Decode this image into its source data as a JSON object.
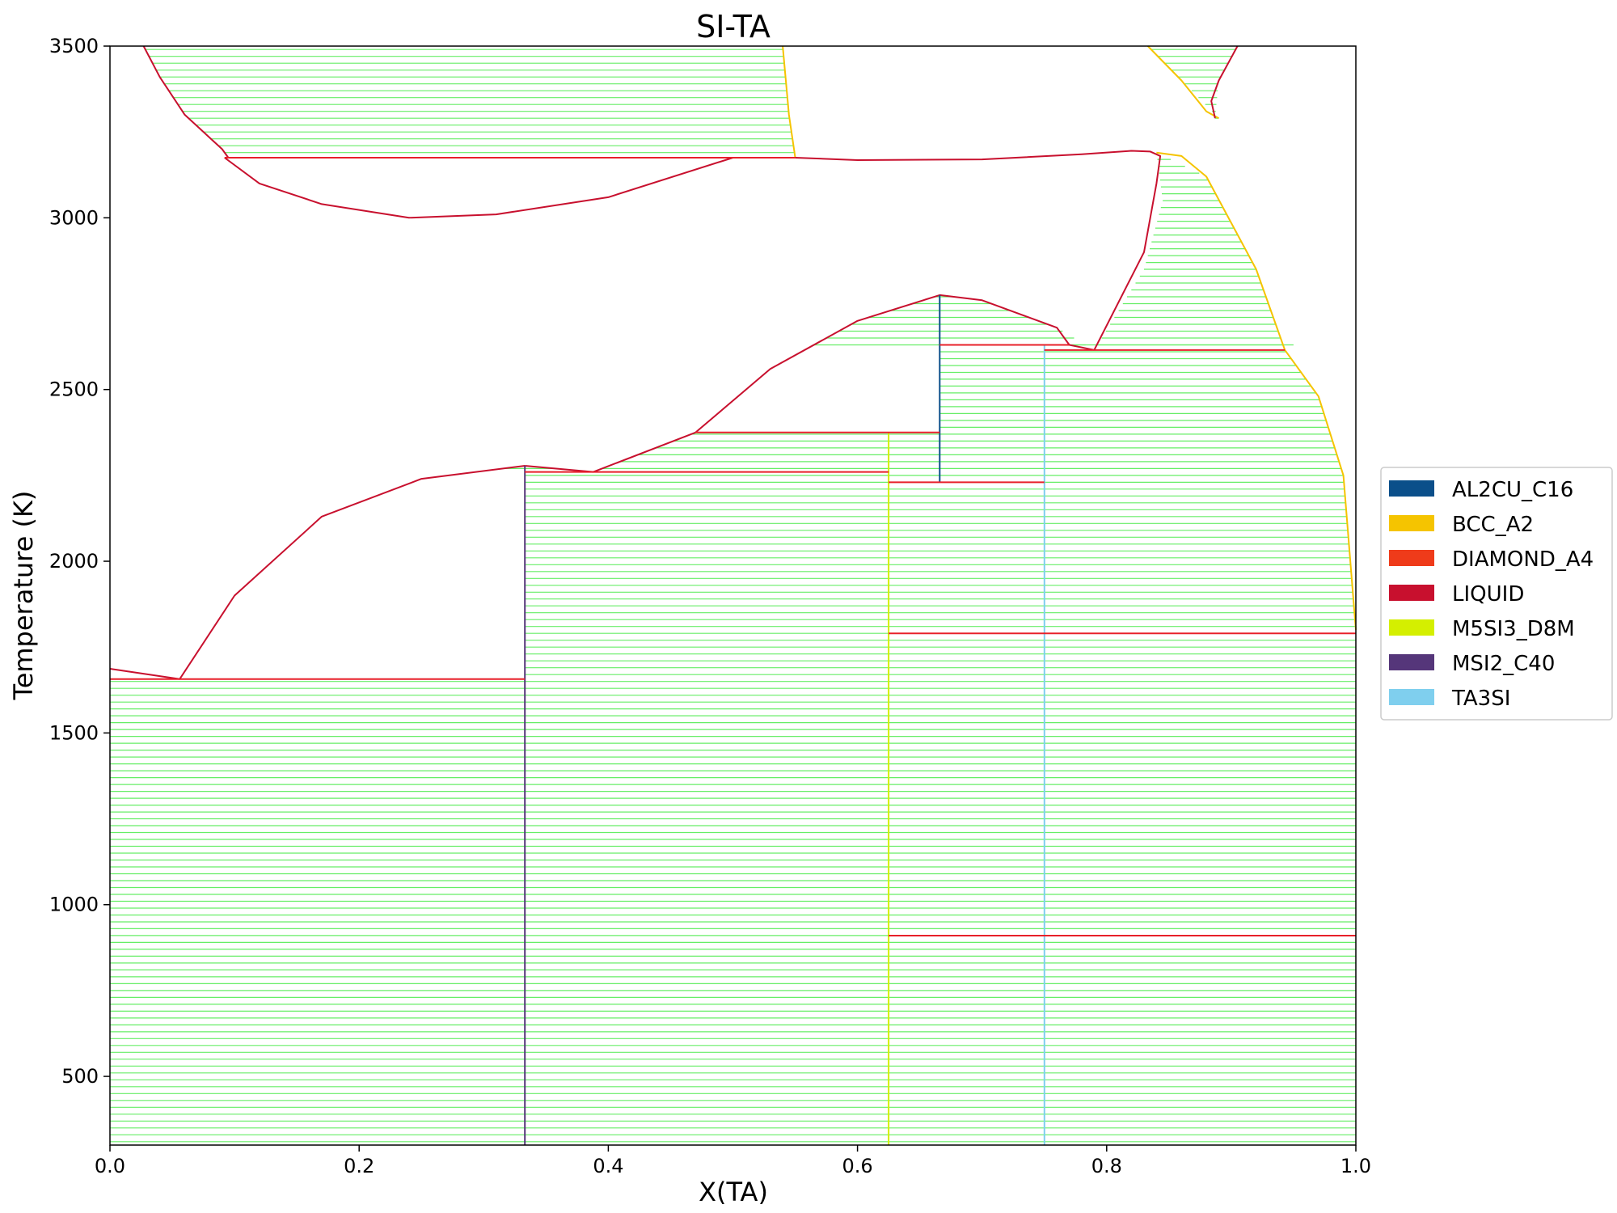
{
  "chart_data": {
    "type": "line",
    "title": "SI-TA",
    "xlabel": "X(TA)",
    "ylabel": "Temperature (K)",
    "xlim": [
      0.0,
      1.0
    ],
    "ylim": [
      300,
      3500
    ],
    "xticks": [
      0.0,
      0.2,
      0.4,
      0.6,
      0.8,
      1.0
    ],
    "xtick_labels": [
      "0.0",
      "0.2",
      "0.4",
      "0.6",
      "0.8",
      "1.0"
    ],
    "yticks": [
      500,
      1000,
      1500,
      2000,
      2500,
      3000,
      3500
    ],
    "ytick_labels": [
      "500",
      "1000",
      "1500",
      "2000",
      "2500",
      "3000",
      "3500"
    ],
    "grid": false,
    "legend_position": "center-right-outside",
    "tieline_color": "#66ee66",
    "legend": [
      {
        "label": "AL2CU_C16",
        "color": "#0b4f8a"
      },
      {
        "label": "BCC_A2",
        "color": "#f5c400"
      },
      {
        "label": "DIAMOND_A4",
        "color": "#ef3b1a"
      },
      {
        "label": "LIQUID",
        "color": "#c8102e"
      },
      {
        "label": "M5SI3_D8M",
        "color": "#d4ef00"
      },
      {
        "label": "MSI2_C40",
        "color": "#55367a"
      },
      {
        "label": "TA3SI",
        "color": "#7fcfee"
      }
    ],
    "regions": [
      {
        "name": "liquid-miscibility-upper-left",
        "left": [
          [
            0.027,
            3500
          ],
          [
            0.04,
            3410
          ],
          [
            0.06,
            3300
          ],
          [
            0.09,
            3200
          ],
          [
            0.095,
            3175
          ]
        ],
        "right": [
          [
            0.54,
            3500
          ],
          [
            0.545,
            3300
          ],
          [
            0.55,
            3175
          ]
        ]
      },
      {
        "name": "liquid-miscibility-lower",
        "left": [
          [
            0.092,
            3175
          ],
          [
            0.12,
            3100
          ],
          [
            0.17,
            3040
          ],
          [
            0.24,
            3000
          ],
          [
            0.31,
            3010
          ],
          [
            0.4,
            3060
          ],
          [
            0.5,
            3175
          ]
        ],
        "right": [
          [
            0.5,
            3175
          ],
          [
            0.55,
            3175
          ]
        ]
      },
      {
        "name": "liquid-miscibility-upper-right",
        "left": [
          [
            0.833,
            3500
          ],
          [
            0.86,
            3400
          ],
          [
            0.89,
            3290
          ]
        ],
        "right": [
          [
            0.905,
            3500
          ],
          [
            0.89,
            3400
          ],
          [
            0.887,
            3290
          ]
        ]
      },
      {
        "name": "liquid-bcc-high",
        "left": [
          [
            0.79,
            2615
          ],
          [
            0.83,
            2850
          ],
          [
            0.845,
            3050
          ],
          [
            0.84,
            3190
          ]
        ],
        "right": [
          [
            0.84,
            3190
          ],
          [
            0.88,
            3120
          ],
          [
            0.92,
            2850
          ],
          [
            0.943,
            2615
          ]
        ]
      },
      {
        "name": "liquid-ta3si",
        "left": [
          [
            0.75,
            2630
          ],
          [
            0.77,
            2630
          ],
          [
            0.79,
            2615
          ]
        ],
        "right": [
          [
            0.943,
            2615
          ],
          [
            0.95,
            2630
          ]
        ]
      },
      {
        "name": "bcc-ta3si",
        "left": [
          [
            0.75,
            2615
          ],
          [
            0.75,
            1790
          ]
        ],
        "right": [
          [
            0.943,
            2615
          ],
          [
            0.97,
            2480
          ],
          [
            0.99,
            2250
          ],
          [
            1.0,
            1800
          ]
        ]
      },
      {
        "name": "liquid-al2cu",
        "left": [
          [
            0.47,
            2375
          ],
          [
            0.53,
            2560
          ],
          [
            0.6,
            2700
          ],
          [
            0.666,
            2775
          ]
        ],
        "right": [
          [
            0.666,
            2775
          ],
          [
            0.7,
            2760
          ],
          [
            0.76,
            2680
          ],
          [
            0.79,
            2615
          ]
        ]
      },
      {
        "name": "liquid-m5si3",
        "left": [
          [
            0.388,
            2260
          ],
          [
            0.47,
            2375
          ]
        ],
        "right": [
          [
            0.625,
            2260
          ],
          [
            0.625,
            2375
          ]
        ]
      },
      {
        "name": "m5si3-al2cu",
        "left": [
          [
            0.625,
            2375
          ],
          [
            0.625,
            2230
          ]
        ],
        "right": [
          [
            0.666,
            2375
          ],
          [
            0.666,
            2230
          ]
        ]
      },
      {
        "name": "al2cu-ta3si",
        "left": [
          [
            0.666,
            2630
          ],
          [
            0.666,
            2230
          ]
        ],
        "right": [
          [
            0.75,
            2630
          ],
          [
            0.75,
            2230
          ]
        ]
      },
      {
        "name": "m5si3-ta3si",
        "left": [
          [
            0.625,
            2230
          ],
          [
            0.625,
            1790
          ]
        ],
        "right": [
          [
            0.75,
            2230
          ],
          [
            0.75,
            1790
          ]
        ]
      },
      {
        "name": "liquid-msi2",
        "left": [
          [
            0.056,
            1657
          ],
          [
            0.1,
            1900
          ],
          [
            0.17,
            2130
          ],
          [
            0.25,
            2240
          ],
          [
            0.333,
            2278
          ]
        ],
        "right": [
          [
            0.333,
            2278
          ],
          [
            0.388,
            2260
          ]
        ]
      },
      {
        "name": "liquid-diamond",
        "left": [
          [
            0.0,
            1687
          ],
          [
            0.0,
            1657
          ]
        ],
        "right": [
          [
            0.056,
            1657
          ]
        ]
      },
      {
        "name": "diamond-msi2",
        "left": [
          [
            0.0,
            1657
          ],
          [
            0.0,
            300
          ]
        ],
        "right": [
          [
            0.333,
            1657
          ],
          [
            0.333,
            300
          ]
        ]
      },
      {
        "name": "msi2-m5si3",
        "left": [
          [
            0.333,
            2260
          ],
          [
            0.333,
            300
          ]
        ],
        "right": [
          [
            0.625,
            2260
          ],
          [
            0.625,
            300
          ]
        ]
      },
      {
        "name": "m5si3-bcc",
        "left": [
          [
            0.625,
            1790
          ],
          [
            0.625,
            910
          ]
        ],
        "right": [
          [
            1.0,
            1790
          ],
          [
            1.0,
            910
          ]
        ]
      },
      {
        "name": "m5si3-ta3si-low",
        "left": [
          [
            0.625,
            910
          ],
          [
            0.625,
            300
          ]
        ],
        "right": [
          [
            0.75,
            910
          ],
          [
            0.75,
            300
          ]
        ]
      },
      {
        "name": "ta3si-bcc-low",
        "left": [
          [
            0.75,
            910
          ],
          [
            0.75,
            300
          ]
        ],
        "right": [
          [
            1.0,
            910
          ],
          [
            1.0,
            300
          ]
        ]
      }
    ],
    "phase_boundaries": [
      {
        "phase": "LIQUID",
        "points": [
          [
            0.027,
            3500
          ],
          [
            0.04,
            3410
          ],
          [
            0.06,
            3300
          ],
          [
            0.09,
            3200
          ],
          [
            0.095,
            3175
          ]
        ]
      },
      {
        "phase": "LIQUID",
        "points": [
          [
            0.092,
            3175
          ],
          [
            0.12,
            3100
          ],
          [
            0.17,
            3040
          ],
          [
            0.24,
            3000
          ],
          [
            0.31,
            3010
          ],
          [
            0.4,
            3060
          ],
          [
            0.5,
            3175
          ]
        ]
      },
      {
        "phase": "BCC_A2",
        "points": [
          [
            0.54,
            3500
          ],
          [
            0.545,
            3300
          ],
          [
            0.55,
            3175
          ]
        ]
      },
      {
        "phase": "LIQUID",
        "points": [
          [
            0.55,
            3175
          ],
          [
            0.6,
            3168
          ],
          [
            0.7,
            3170
          ],
          [
            0.78,
            3185
          ],
          [
            0.82,
            3195
          ],
          [
            0.835,
            3193
          ],
          [
            0.843,
            3180
          ],
          [
            0.84,
            3100
          ],
          [
            0.83,
            2900
          ],
          [
            0.79,
            2615
          ]
        ]
      },
      {
        "phase": "BCC_A2",
        "points": [
          [
            0.84,
            3190
          ],
          [
            0.86,
            3180
          ],
          [
            0.88,
            3120
          ],
          [
            0.92,
            2850
          ],
          [
            0.943,
            2615
          ],
          [
            0.97,
            2480
          ],
          [
            0.99,
            2250
          ],
          [
            1.0,
            1800
          ]
        ]
      },
      {
        "phase": "BCC_A2",
        "points": [
          [
            0.833,
            3500
          ],
          [
            0.86,
            3400
          ],
          [
            0.88,
            3310
          ],
          [
            0.89,
            3290
          ]
        ]
      },
      {
        "phase": "LIQUID",
        "points": [
          [
            0.905,
            3500
          ],
          [
            0.89,
            3400
          ],
          [
            0.884,
            3340
          ],
          [
            0.887,
            3290
          ]
        ]
      },
      {
        "phase": "LIQUID",
        "points": [
          [
            0.47,
            2375
          ],
          [
            0.53,
            2560
          ],
          [
            0.6,
            2700
          ],
          [
            0.666,
            2775
          ],
          [
            0.7,
            2760
          ],
          [
            0.76,
            2680
          ],
          [
            0.77,
            2630
          ],
          [
            0.79,
            2615
          ]
        ]
      },
      {
        "phase": "LIQUID",
        "points": [
          [
            0.333,
            2278
          ],
          [
            0.388,
            2260
          ],
          [
            0.47,
            2375
          ]
        ]
      },
      {
        "phase": "LIQUID",
        "points": [
          [
            0.056,
            1657
          ],
          [
            0.1,
            1900
          ],
          [
            0.17,
            2130
          ],
          [
            0.25,
            2240
          ],
          [
            0.333,
            2278
          ]
        ]
      },
      {
        "phase": "LIQUID",
        "points": [
          [
            0.0,
            1687
          ],
          [
            0.056,
            1657
          ]
        ]
      },
      {
        "phase": "AL2CU_C16",
        "points": [
          [
            0.666,
            2775
          ],
          [
            0.666,
            2230
          ]
        ]
      },
      {
        "phase": "MSI2_C40",
        "points": [
          [
            0.333,
            2278
          ],
          [
            0.333,
            300
          ]
        ]
      },
      {
        "phase": "M5SI3_D8M",
        "points": [
          [
            0.625,
            2375
          ],
          [
            0.625,
            300
          ]
        ]
      },
      {
        "phase": "TA3SI",
        "points": [
          [
            0.75,
            2630
          ],
          [
            0.75,
            300
          ]
        ]
      }
    ],
    "invariant_lines": [
      {
        "T": 3175,
        "x_from": 0.092,
        "x_to": 0.55
      },
      {
        "T": 2630,
        "x_from": 0.666,
        "x_to": 0.77
      },
      {
        "T": 2615,
        "x_from": 0.75,
        "x_to": 0.943
      },
      {
        "T": 2375,
        "x_from": 0.47,
        "x_to": 0.666
      },
      {
        "T": 2260,
        "x_from": 0.333,
        "x_to": 0.625
      },
      {
        "T": 2230,
        "x_from": 0.625,
        "x_to": 0.75
      },
      {
        "T": 1790,
        "x_from": 0.625,
        "x_to": 1.0
      },
      {
        "T": 1657,
        "x_from": 0.0,
        "x_to": 0.333
      },
      {
        "T": 910,
        "x_from": 0.625,
        "x_to": 1.0
      }
    ]
  }
}
